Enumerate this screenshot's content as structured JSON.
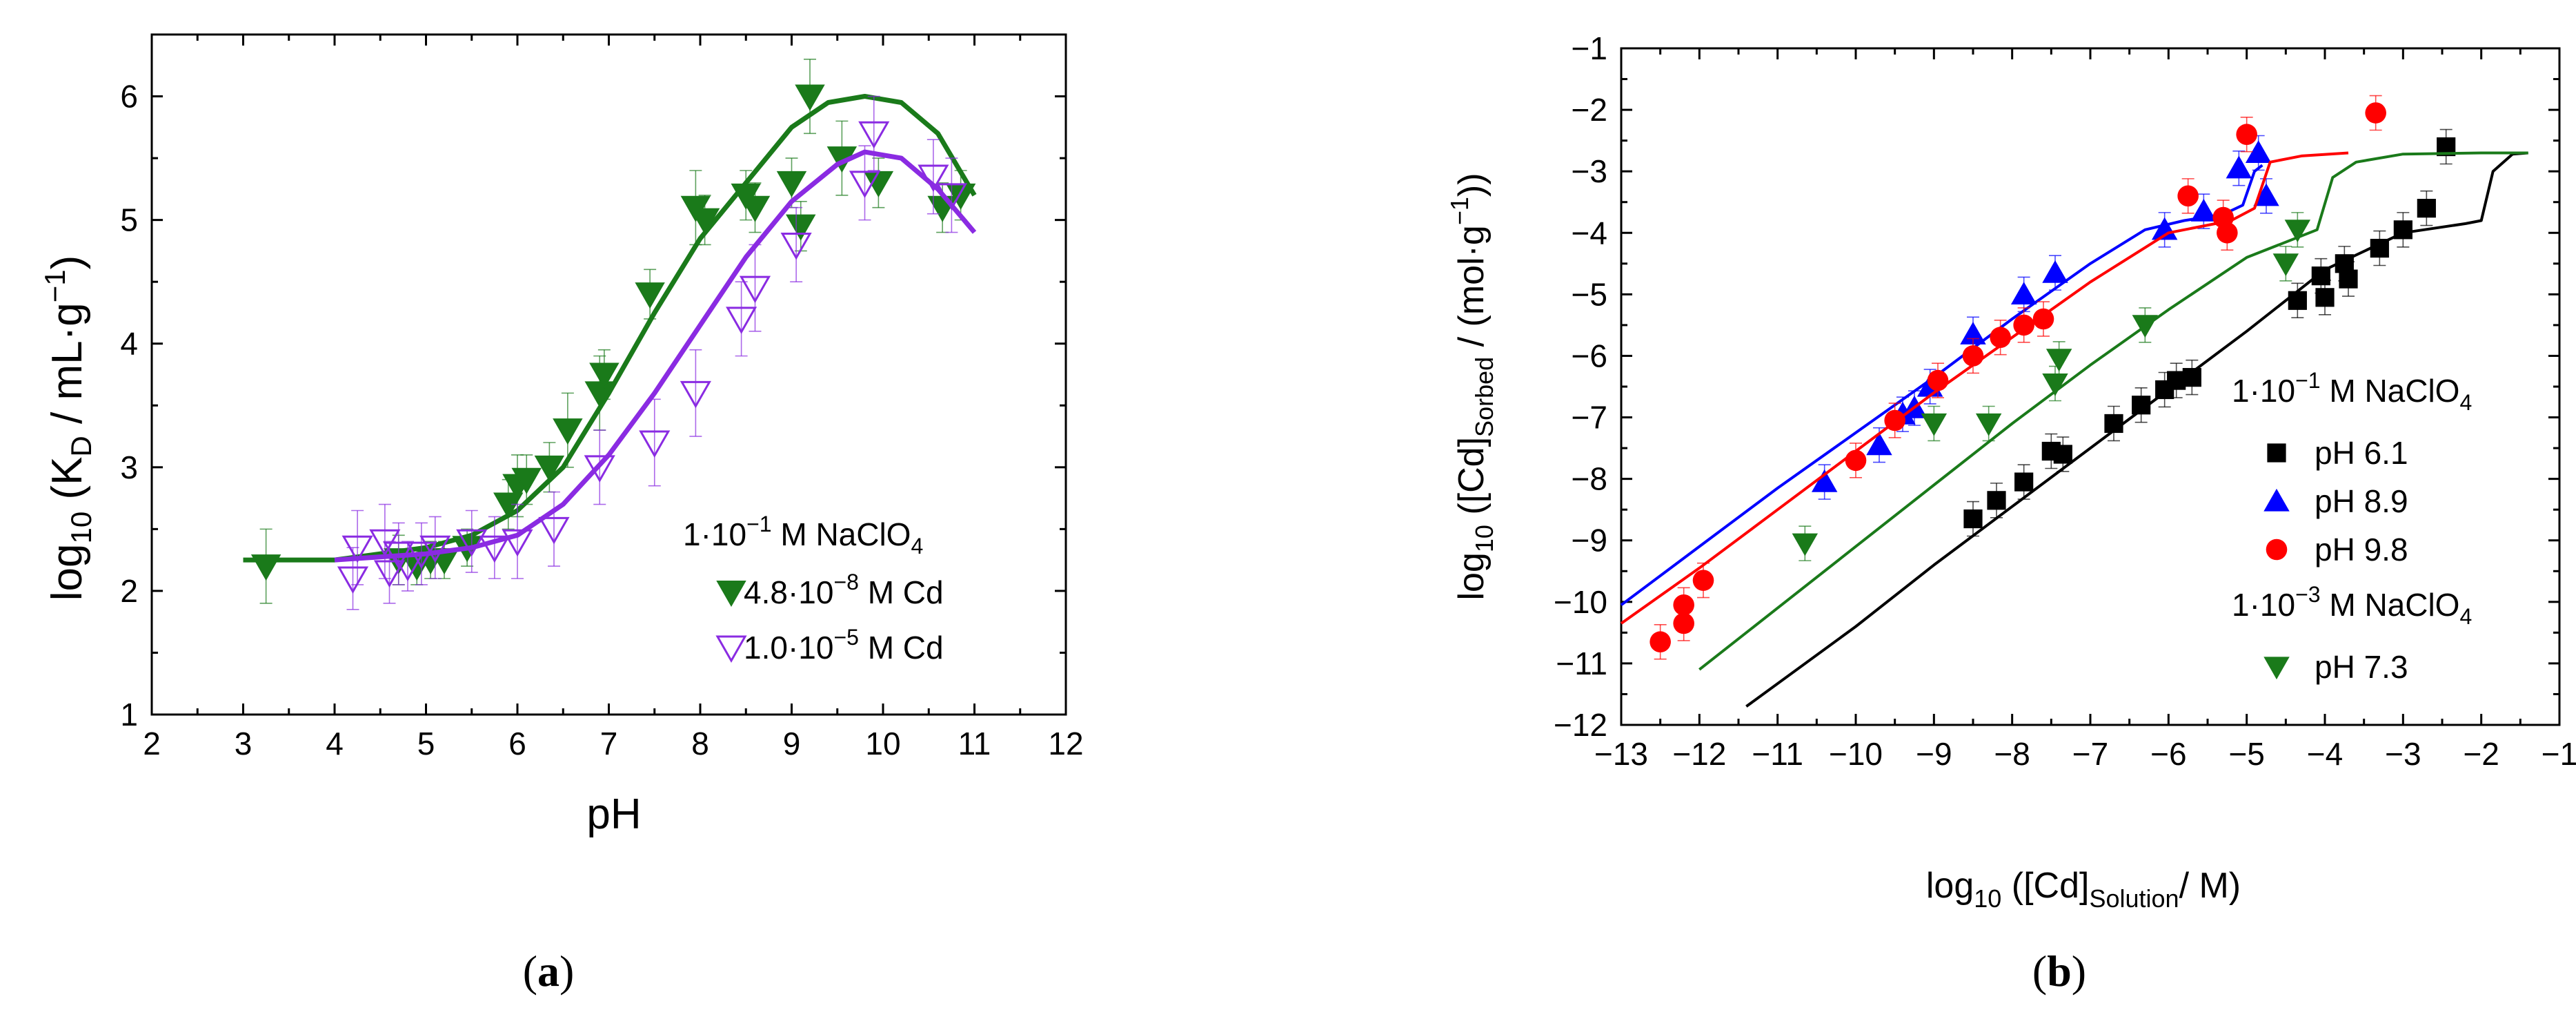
{
  "chart_data": [
    {
      "panel": "a",
      "panel_label": "(a)",
      "type": "scatter",
      "xlabel": "pH",
      "ylabel": {
        "pre": "log",
        "sub": "10",
        "mid": " (K",
        "sub2": "D",
        "post": " / mL·g",
        "sup": "−1",
        "end": ")"
      },
      "xlim": [
        2,
        12
      ],
      "ylim": [
        1,
        6.5
      ],
      "xticks": [
        2,
        3,
        4,
        5,
        6,
        7,
        8,
        9,
        10,
        11,
        12
      ],
      "yticks": [
        1,
        2,
        3,
        4,
        5,
        6
      ],
      "legend_title": {
        "pre": "1·10",
        "sup": "−1",
        "post": " M NaClO",
        "sub": "4"
      },
      "series": [
        {
          "name": "4.8·10−8 M Cd",
          "label": {
            "pre": "4.8·10",
            "sup": "−8",
            "post": " M Cd"
          },
          "marker": "triangle-down-filled",
          "color": "#1a7a1a",
          "points": [
            [
              3.25,
              2.2
            ],
            [
              4.7,
              2.25
            ],
            [
              4.9,
              2.2
            ],
            [
              5.05,
              2.25
            ],
            [
              5.2,
              2.25
            ],
            [
              5.45,
              2.35
            ],
            [
              5.9,
              2.7
            ],
            [
              6.0,
              2.85
            ],
            [
              6.1,
              2.9
            ],
            [
              6.35,
              3.0
            ],
            [
              6.55,
              3.3
            ],
            [
              6.9,
              3.6
            ],
            [
              6.95,
              3.75
            ],
            [
              7.45,
              4.4
            ],
            [
              7.95,
              5.1
            ],
            [
              8.05,
              5.0
            ],
            [
              8.5,
              5.2
            ],
            [
              8.6,
              5.1
            ],
            [
              9.0,
              5.3
            ],
            [
              9.1,
              4.95
            ],
            [
              9.2,
              6.0
            ],
            [
              9.55,
              5.5
            ],
            [
              9.95,
              5.3
            ],
            [
              10.65,
              5.1
            ],
            [
              10.85,
              5.2
            ]
          ],
          "errors": [
            0.3,
            0.2,
            0.15,
            0.15,
            0.15,
            0.15,
            0.2,
            0.25,
            0.2,
            0.2,
            0.3,
            0.3,
            0.2,
            0.2,
            0.3,
            0.2,
            0.2,
            0.2,
            0.2,
            0.2,
            0.3,
            0.3,
            0.2,
            0.2,
            0.2
          ],
          "curve": [
            [
              3.0,
              2.25
            ],
            [
              4.0,
              2.25
            ],
            [
              5.0,
              2.35
            ],
            [
              5.5,
              2.45
            ],
            [
              6.0,
              2.65
            ],
            [
              6.5,
              3.0
            ],
            [
              7.0,
              3.6
            ],
            [
              7.5,
              4.25
            ],
            [
              8.0,
              4.85
            ],
            [
              8.5,
              5.3
            ],
            [
              9.0,
              5.75
            ],
            [
              9.4,
              5.95
            ],
            [
              9.8,
              6.0
            ],
            [
              10.2,
              5.95
            ],
            [
              10.6,
              5.7
            ],
            [
              11.0,
              5.2
            ]
          ]
        },
        {
          "name": "1.0·10−5 M Cd",
          "label": {
            "pre": "1.0·10",
            "sup": "−5",
            "post": " M Cd"
          },
          "marker": "triangle-down-open",
          "color": "#8a2be2",
          "points": [
            [
              4.2,
              2.1
            ],
            [
              4.25,
              2.35
            ],
            [
              4.55,
              2.4
            ],
            [
              4.6,
              2.15
            ],
            [
              4.7,
              2.3
            ],
            [
              4.8,
              2.2
            ],
            [
              4.95,
              2.3
            ],
            [
              5.1,
              2.35
            ],
            [
              5.5,
              2.4
            ],
            [
              5.75,
              2.35
            ],
            [
              6.0,
              2.4
            ],
            [
              6.4,
              2.5
            ],
            [
              6.9,
              3.0
            ],
            [
              7.5,
              3.2
            ],
            [
              7.95,
              3.6
            ],
            [
              8.45,
              4.2
            ],
            [
              8.6,
              4.45
            ],
            [
              9.05,
              4.8
            ],
            [
              9.8,
              5.3
            ],
            [
              9.9,
              5.7
            ],
            [
              10.55,
              5.35
            ],
            [
              10.75,
              5.2
            ]
          ],
          "errors": [
            0.25,
            0.3,
            0.3,
            0.25,
            0.25,
            0.2,
            0.25,
            0.25,
            0.25,
            0.25,
            0.3,
            0.3,
            0.3,
            0.35,
            0.35,
            0.3,
            0.35,
            0.3,
            0.3,
            0.3,
            0.3,
            0.3
          ],
          "curve": [
            [
              4.0,
              2.25
            ],
            [
              5.0,
              2.3
            ],
            [
              5.5,
              2.35
            ],
            [
              6.0,
              2.45
            ],
            [
              6.5,
              2.7
            ],
            [
              7.0,
              3.1
            ],
            [
              7.5,
              3.6
            ],
            [
              8.0,
              4.15
            ],
            [
              8.5,
              4.7
            ],
            [
              9.0,
              5.15
            ],
            [
              9.5,
              5.45
            ],
            [
              9.8,
              5.55
            ],
            [
              10.2,
              5.5
            ],
            [
              10.6,
              5.25
            ],
            [
              11.0,
              4.9
            ]
          ]
        }
      ]
    },
    {
      "panel": "b",
      "panel_label": "(b)",
      "type": "scatter",
      "xlabel": {
        "pre": "log",
        "sub": "10",
        "mid": " ([Cd]",
        "sub2": "Solution",
        "post": "/ M)"
      },
      "ylabel": {
        "pre": "log",
        "sub": "10",
        "mid": " ([Cd]",
        "sub2": "Sorbed",
        "post": " / (mol·g",
        "sup": "−1",
        "end": "))"
      },
      "xlim": [
        -13,
        -1
      ],
      "ylim": [
        -12,
        -1
      ],
      "xticks": [
        -13,
        -12,
        -11,
        -10,
        -9,
        -8,
        -7,
        -6,
        -5,
        -4,
        -3,
        -2,
        -1
      ],
      "yticks": [
        -12,
        -11,
        -10,
        -9,
        -8,
        -7,
        -6,
        -5,
        -4,
        -3,
        -2,
        -1
      ],
      "legend_group1": {
        "pre": "1·10",
        "sup": "−1",
        "post": " M NaClO",
        "sub": "4"
      },
      "legend_group2": {
        "pre": "1·10",
        "sup": "−3",
        "post": " M NaClO",
        "sub": "4"
      },
      "series": [
        {
          "name": "pH 6.1",
          "marker": "square",
          "color": "#000000",
          "points": [
            [
              -8.5,
              -8.65
            ],
            [
              -8.2,
              -8.35
            ],
            [
              -7.85,
              -8.05
            ],
            [
              -7.5,
              -7.55
            ],
            [
              -7.35,
              -7.6
            ],
            [
              -6.7,
              -7.1
            ],
            [
              -6.35,
              -6.8
            ],
            [
              -6.05,
              -6.55
            ],
            [
              -5.9,
              -6.4
            ],
            [
              -5.7,
              -6.35
            ],
            [
              -4.35,
              -5.1
            ],
            [
              -4.05,
              -4.7
            ],
            [
              -4.0,
              -5.05
            ],
            [
              -3.75,
              -4.5
            ],
            [
              -3.7,
              -4.75
            ],
            [
              -3.3,
              -4.25
            ],
            [
              -3.0,
              -3.95
            ],
            [
              -2.7,
              -3.6
            ],
            [
              -2.45,
              -2.6
            ]
          ],
          "curve": [
            [
              -11.4,
              -11.7
            ],
            [
              -10,
              -10.4
            ],
            [
              -9,
              -9.4
            ],
            [
              -8,
              -8.45
            ],
            [
              -7,
              -7.5
            ],
            [
              -6,
              -6.55
            ],
            [
              -5,
              -5.6
            ],
            [
              -4,
              -4.6
            ],
            [
              -3,
              -4.0
            ],
            [
              -2.2,
              -3.85
            ],
            [
              -2.0,
              -3.8
            ],
            [
              -1.85,
              -3.0
            ],
            [
              -1.6,
              -2.72
            ],
            [
              -1.4,
              -2.7
            ]
          ]
        },
        {
          "name": "pH 8.9",
          "marker": "triangle-up",
          "color": "#0000ff",
          "points": [
            [
              -10.4,
              -8.05
            ],
            [
              -9.7,
              -7.45
            ],
            [
              -9.4,
              -6.95
            ],
            [
              -9.25,
              -6.85
            ],
            [
              -9.05,
              -6.5
            ],
            [
              -8.5,
              -5.65
            ],
            [
              -7.85,
              -5.0
            ],
            [
              -7.45,
              -4.65
            ],
            [
              -6.05,
              -3.95
            ],
            [
              -5.55,
              -3.65
            ],
            [
              -5.1,
              -2.95
            ],
            [
              -4.85,
              -2.7
            ],
            [
              -4.75,
              -3.4
            ]
          ],
          "curve": [
            [
              -13,
              -10.05
            ],
            [
              -12,
              -9.1
            ],
            [
              -11,
              -8.15
            ],
            [
              -10,
              -7.25
            ],
            [
              -9,
              -6.35
            ],
            [
              -8,
              -5.4
            ],
            [
              -7,
              -4.5
            ],
            [
              -6.3,
              -3.95
            ],
            [
              -5.8,
              -3.8
            ],
            [
              -5.3,
              -3.7
            ],
            [
              -5.05,
              -3.55
            ],
            [
              -4.9,
              -3.0
            ],
            [
              -4.8,
              -2.9
            ]
          ]
        },
        {
          "name": "pH 9.8",
          "marker": "circle",
          "color": "#ff0000",
          "points": [
            [
              -12.5,
              -10.65
            ],
            [
              -12.2,
              -10.35
            ],
            [
              -12.2,
              -10.05
            ],
            [
              -11.95,
              -9.65
            ],
            [
              -10.0,
              -7.7
            ],
            [
              -9.5,
              -7.05
            ],
            [
              -8.95,
              -6.4
            ],
            [
              -8.5,
              -6.0
            ],
            [
              -8.15,
              -5.7
            ],
            [
              -7.85,
              -5.5
            ],
            [
              -7.6,
              -5.4
            ],
            [
              -5.75,
              -3.4
            ],
            [
              -5.3,
              -3.75
            ],
            [
              -5.25,
              -4.0
            ],
            [
              -5.0,
              -2.4
            ],
            [
              -3.35,
              -2.05
            ]
          ],
          "curve": [
            [
              -13,
              -10.35
            ],
            [
              -12,
              -9.45
            ],
            [
              -11,
              -8.5
            ],
            [
              -10,
              -7.55
            ],
            [
              -9,
              -6.6
            ],
            [
              -8,
              -5.7
            ],
            [
              -7,
              -4.8
            ],
            [
              -6,
              -4.0
            ],
            [
              -5.2,
              -3.8
            ],
            [
              -4.9,
              -3.6
            ],
            [
              -4.7,
              -2.85
            ],
            [
              -4.3,
              -2.75
            ],
            [
              -3.7,
              -2.7
            ]
          ]
        },
        {
          "name": "pH 7.3",
          "marker": "triangle-down",
          "color": "#1a7a1a",
          "points": [
            [
              -10.65,
              -9.05
            ],
            [
              -9.0,
              -7.1
            ],
            [
              -8.3,
              -7.1
            ],
            [
              -7.45,
              -6.45
            ],
            [
              -7.4,
              -6.05
            ],
            [
              -6.3,
              -5.5
            ],
            [
              -4.5,
              -4.5
            ],
            [
              -4.35,
              -3.95
            ]
          ],
          "curve": [
            [
              -12,
              -11.1
            ],
            [
              -11,
              -10.1
            ],
            [
              -10,
              -9.1
            ],
            [
              -9,
              -8.1
            ],
            [
              -8,
              -7.1
            ],
            [
              -7,
              -6.15
            ],
            [
              -6,
              -5.25
            ],
            [
              -5,
              -4.4
            ],
            [
              -4.1,
              -3.95
            ],
            [
              -3.9,
              -3.1
            ],
            [
              -3.6,
              -2.85
            ],
            [
              -3,
              -2.72
            ],
            [
              -2,
              -2.7
            ],
            [
              -1.4,
              -2.7
            ]
          ]
        }
      ]
    }
  ]
}
